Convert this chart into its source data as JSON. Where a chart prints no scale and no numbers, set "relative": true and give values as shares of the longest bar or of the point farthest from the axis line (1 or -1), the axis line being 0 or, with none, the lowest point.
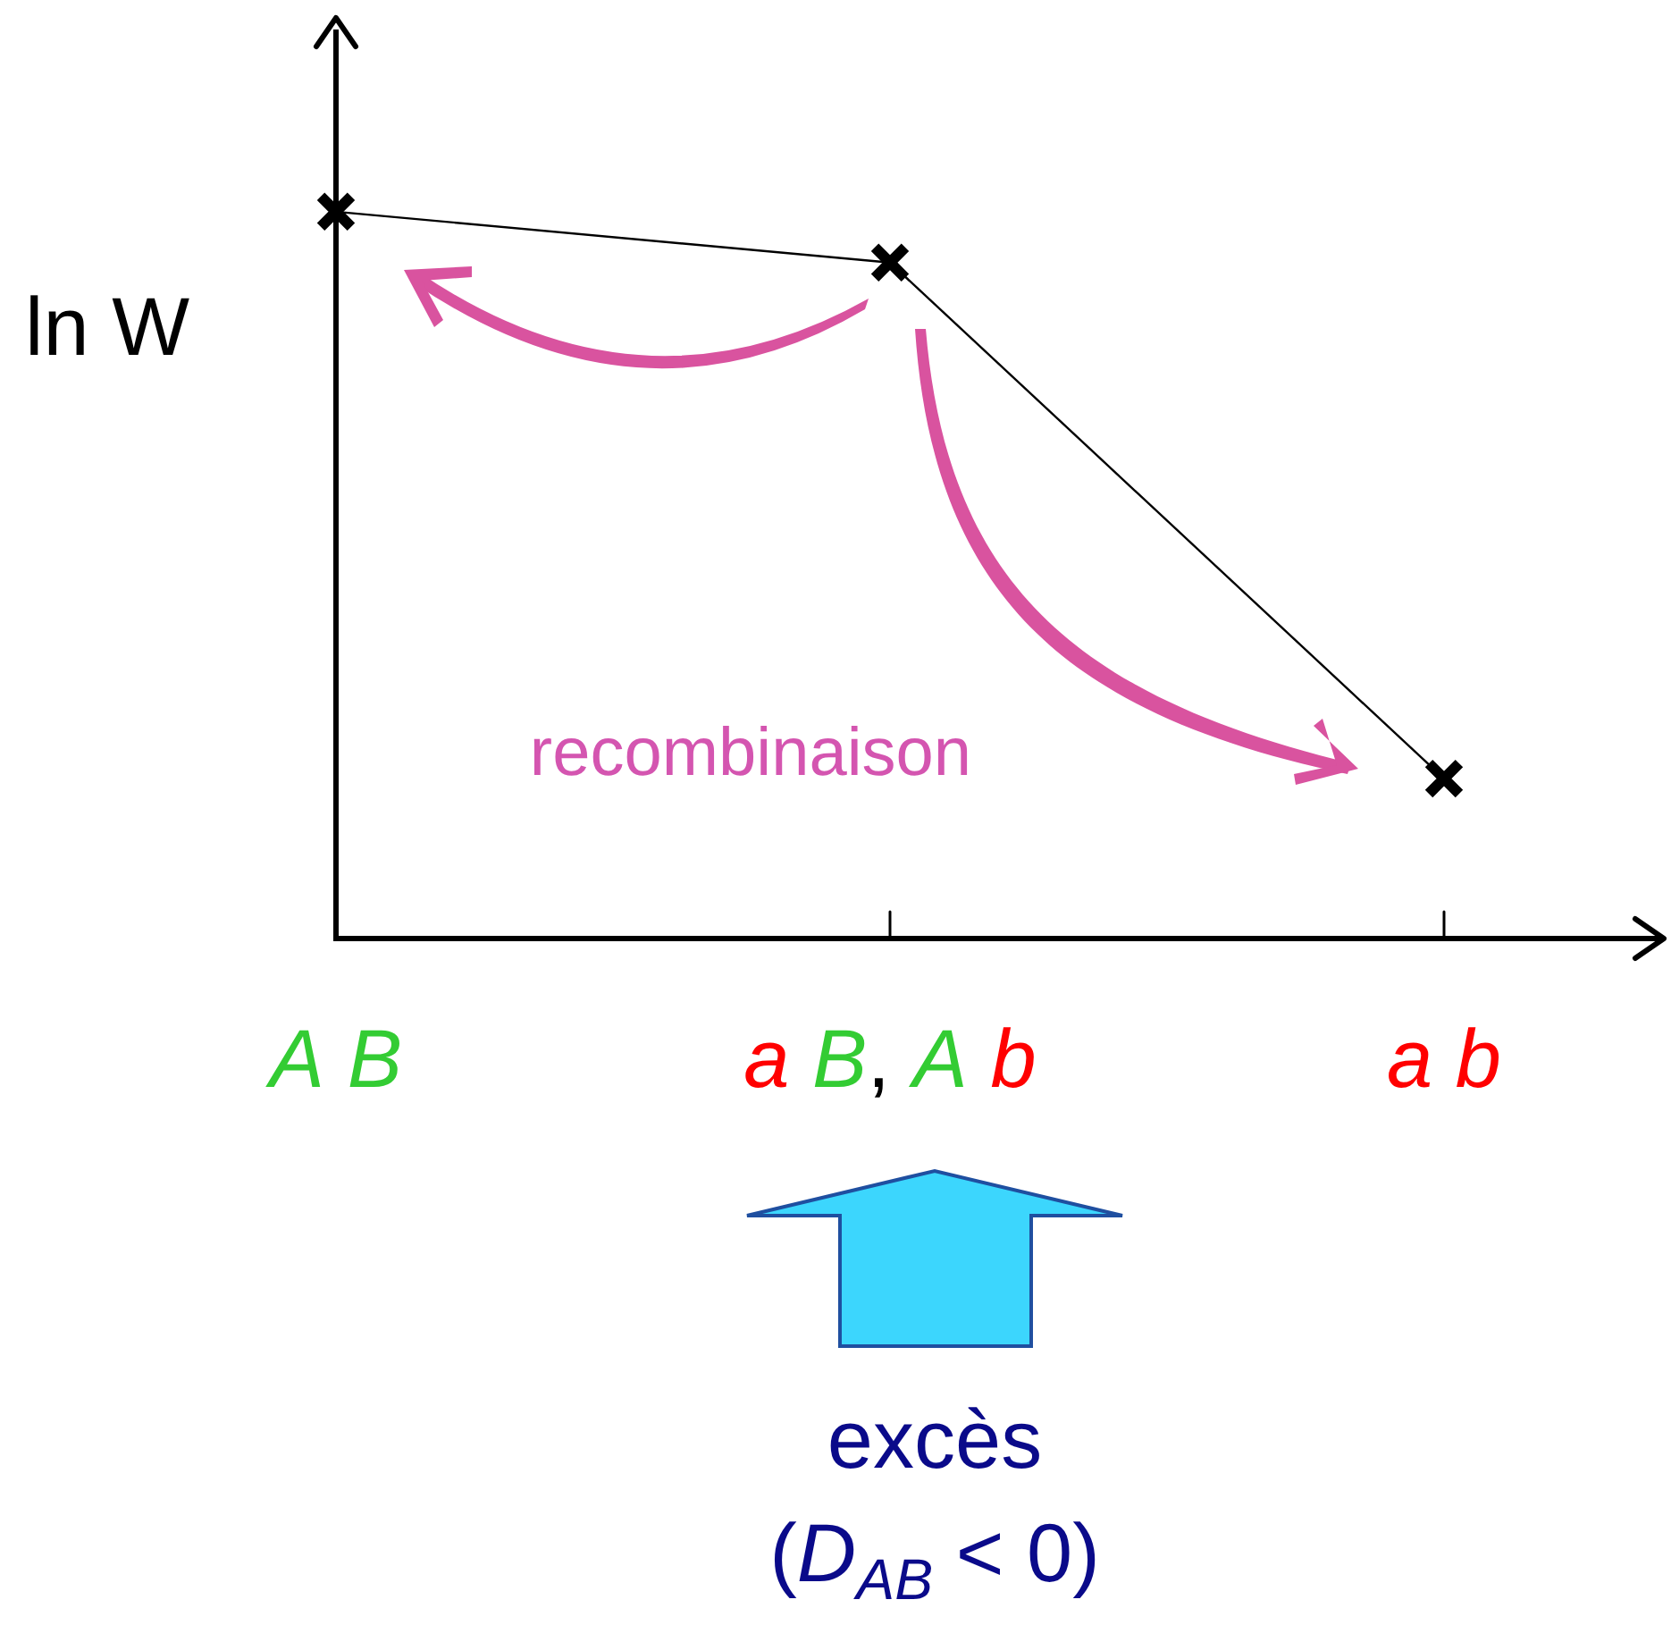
{
  "chart_data": {
    "type": "line",
    "ylabel": "ln W",
    "categories": [
      "A B",
      "a B, A b",
      "a b"
    ],
    "relative": true,
    "series": [
      {
        "color": "#000000",
        "values": [
          1,
          0.93,
          0.22
        ]
      }
    ],
    "marker": "cross",
    "line_style": "solid",
    "legend": false,
    "annotations": [
      "recombinaison",
      "excès",
      "(D$_{AB}$ < 0)"
    ]
  }
}
